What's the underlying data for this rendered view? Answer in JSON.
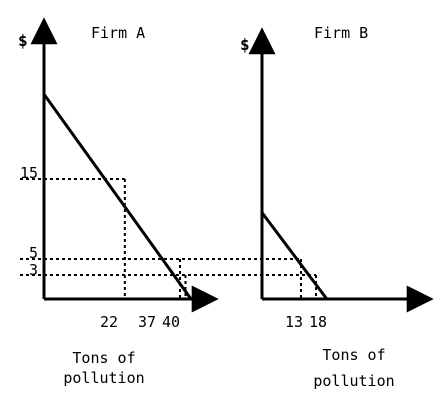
{
  "chart_data": [
    {
      "type": "line",
      "title": "Firm A",
      "ylabel": "$",
      "xlabel": "Tons of pollution",
      "xlim": [
        0,
        43
      ],
      "ylim": [
        0,
        28
      ],
      "series": [
        {
          "values": [
            [
              0,
              25.6
            ],
            [
              40,
              0
            ]
          ]
        }
      ],
      "x_ticks": [
        22,
        37,
        40
      ],
      "x_tick_labels": [
        "22",
        "37",
        "40"
      ],
      "y_ticks": [
        15,
        5,
        3
      ],
      "y_tick_labels": [
        "15",
        "5",
        "3"
      ],
      "reference_lines": [
        {
          "x": 22,
          "y": 15
        },
        {
          "x": 37,
          "y": 5
        },
        {
          "x": 38.5,
          "y": 3
        }
      ],
      "grid": false
    },
    {
      "type": "line",
      "title": "Firm B",
      "ylabel": "$",
      "xlabel": "Tons of pollution",
      "xlim": [
        0,
        38
      ],
      "ylim": [
        0,
        28
      ],
      "series": [
        {
          "values": [
            [
              0,
              10.8
            ],
            [
              21.6,
              0
            ]
          ]
        }
      ],
      "x_ticks": [
        13,
        18
      ],
      "x_tick_labels": [
        "13",
        "18"
      ],
      "reference_lines": [
        {
          "x": 13,
          "y": 5
        },
        {
          "x": 18,
          "y": 3
        }
      ],
      "grid": false
    }
  ]
}
